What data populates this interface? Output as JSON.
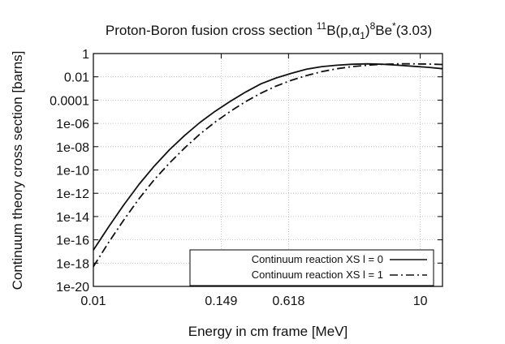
{
  "chart_data": {
    "type": "line",
    "title": {
      "prefix": "Proton-Boron fusion cross section ",
      "sup1": "11",
      "mid1": "B(p,α",
      "sub1": "1",
      "mid2": ")",
      "sup2": "8",
      "mid3": "Be",
      "sup3": "*",
      "suffix": "(3.03)"
    },
    "xlabel": "Energy in cm frame [MeV]",
    "ylabel": "Continuum theory cross section [barns]",
    "x_scale": "log",
    "y_scale": "log",
    "xlim": [
      0.01,
      16
    ],
    "ylim": [
      1e-20,
      1
    ],
    "x_ticks": [
      {
        "value": 0.01,
        "label": "0.01"
      },
      {
        "value": 0.149,
        "label": "0.149"
      },
      {
        "value": 0.618,
        "label": "0.618"
      },
      {
        "value": 10,
        "label": "10"
      }
    ],
    "y_ticks": [
      {
        "value": 1,
        "label": "1"
      },
      {
        "value": 0.01,
        "label": "0.01"
      },
      {
        "value": 0.0001,
        "label": "0.0001"
      },
      {
        "value": 1e-06,
        "label": "1e-06"
      },
      {
        "value": 1e-08,
        "label": "1e-08"
      },
      {
        "value": 1e-10,
        "label": "1e-10"
      },
      {
        "value": 1e-12,
        "label": "1e-12"
      },
      {
        "value": 1e-14,
        "label": "1e-14"
      },
      {
        "value": 1e-16,
        "label": "1e-16"
      },
      {
        "value": 1e-18,
        "label": "1e-18"
      },
      {
        "value": 1e-20,
        "label": "1e-20"
      }
    ],
    "grid": true,
    "legend": "bottom-right",
    "series": [
      {
        "name": "Continuum reaction XS l = 0",
        "style": "solid",
        "x": [
          0.01,
          0.0138,
          0.019,
          0.0263,
          0.0363,
          0.05,
          0.069,
          0.095,
          0.131,
          0.181,
          0.25,
          0.345,
          0.476,
          0.656,
          0.905,
          1.25,
          1.72,
          2.38,
          3.28,
          4.52,
          6.24,
          8.61,
          11.9,
          16.0
        ],
        "y": [
          1.3e-17,
          1.3e-15,
          1e-13,
          6e-12,
          2.2e-10,
          5.5e-09,
          9.5e-08,
          1.2e-06,
          1.1e-05,
          8e-05,
          0.0005,
          0.0025,
          0.008,
          0.02,
          0.045,
          0.075,
          0.1,
          0.12,
          0.13,
          0.12,
          0.1,
          0.08,
          0.065,
          0.05
        ]
      },
      {
        "name": "Continuum reaction XS l = 1",
        "style": "dash-dot",
        "x": [
          0.01,
          0.0138,
          0.019,
          0.0263,
          0.0363,
          0.05,
          0.069,
          0.095,
          0.131,
          0.181,
          0.25,
          0.345,
          0.476,
          0.656,
          0.905,
          1.25,
          1.72,
          2.38,
          3.28,
          4.52,
          6.24,
          8.61,
          11.9,
          16.0
        ],
        "y": [
          5e-19,
          6e-17,
          5e-15,
          3.5e-13,
          1.5e-11,
          4e-10,
          8e-09,
          1.2e-07,
          1.3e-06,
          1.1e-05,
          7.5e-05,
          0.0004,
          0.0016,
          0.005,
          0.013,
          0.028,
          0.05,
          0.075,
          0.1,
          0.12,
          0.13,
          0.13,
          0.125,
          0.115
        ]
      }
    ],
    "colors": {
      "line": "#111111",
      "grid": "#b5b5b5",
      "frame": "#000000"
    }
  }
}
